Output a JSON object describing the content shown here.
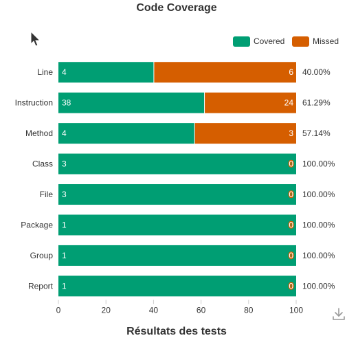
{
  "chart_data": {
    "type": "bar",
    "orientation": "horizontal",
    "stacked": "percent",
    "title": "Code Coverage",
    "categories": [
      "Line",
      "Instruction",
      "Method",
      "Class",
      "File",
      "Package",
      "Group",
      "Report"
    ],
    "series": [
      {
        "name": "Covered",
        "values": [
          4,
          38,
          4,
          3,
          3,
          1,
          1,
          1
        ],
        "color": "#009e73"
      },
      {
        "name": "Missed",
        "values": [
          6,
          24,
          3,
          0,
          0,
          0,
          0,
          0
        ],
        "color": "#d55e00"
      }
    ],
    "percent_labels": [
      "40.00%",
      "61.29%",
      "57.14%",
      "100.00%",
      "100.00%",
      "100.00%",
      "100.00%",
      "100.00%"
    ],
    "xlim": [
      0,
      100
    ],
    "xticks": [
      0,
      20,
      40,
      60,
      80,
      100
    ],
    "legend": "top-right",
    "grid": false
  },
  "page": {
    "next_heading": "Résultats des tests",
    "download_icon": "download-icon",
    "cursor_icon": "cursor-arrow-icon"
  }
}
